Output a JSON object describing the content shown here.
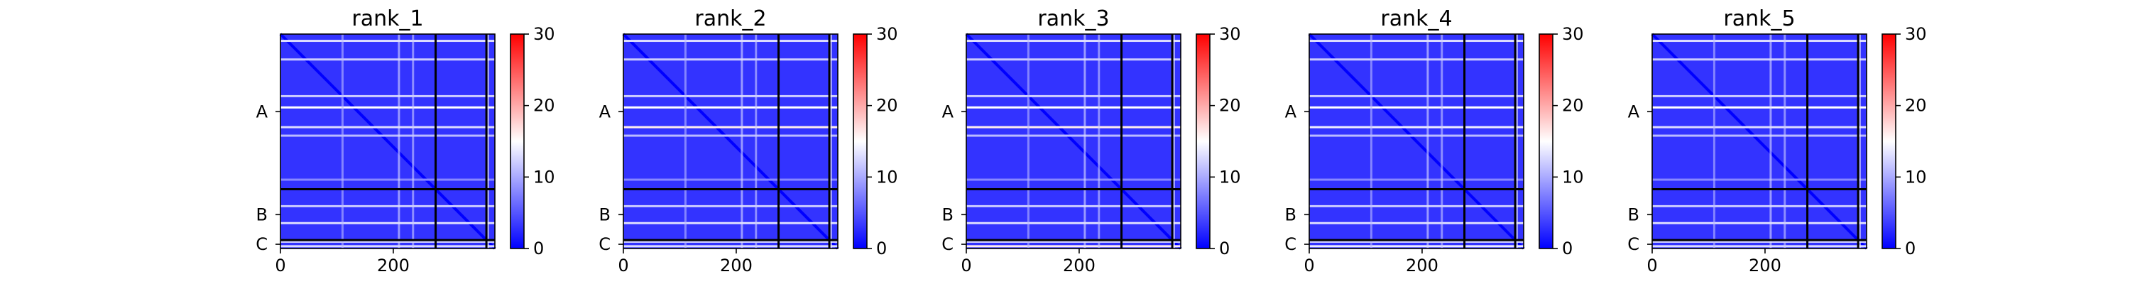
{
  "chart_data": [
    {
      "type": "heatmap",
      "title": "rank_1",
      "xlabel": "",
      "ylabel": "",
      "matrix_size": 380,
      "xlim": [
        0,
        380
      ],
      "x_ticks": [
        0,
        200
      ],
      "y_tick_labels": [
        "A",
        "B",
        "C"
      ],
      "chain_boundaries": [
        275,
        365
      ],
      "colorbar": {
        "ticks": [
          0,
          10,
          20,
          30
        ],
        "vmin": 0,
        "vmax": 30,
        "cmap": "bwr"
      },
      "highlight_rows": [
        {
          "row": 12,
          "value": 13
        },
        {
          "row": 45,
          "value": 12
        },
        {
          "row": 110,
          "value": 12
        },
        {
          "row": 130,
          "value": 15
        },
        {
          "row": 165,
          "value": 13
        },
        {
          "row": 180,
          "value": 11
        },
        {
          "row": 258,
          "value": 8
        },
        {
          "row": 305,
          "value": 12
        },
        {
          "row": 335,
          "value": 13
        },
        {
          "row": 368,
          "value": 12
        },
        {
          "row": 376,
          "value": 13
        }
      ],
      "highlight_cols": [
        {
          "col": 110,
          "value": 11
        },
        {
          "col": 210,
          "value": 13
        },
        {
          "col": 235,
          "value": 12
        },
        {
          "col": 368,
          "value": 14
        }
      ]
    },
    {
      "type": "heatmap",
      "title": "rank_2",
      "xlabel": "",
      "ylabel": "",
      "matrix_size": 380,
      "xlim": [
        0,
        380
      ],
      "x_ticks": [
        0,
        200
      ],
      "y_tick_labels": [
        "A",
        "B",
        "C"
      ],
      "chain_boundaries": [
        275,
        365
      ],
      "colorbar": {
        "ticks": [
          0,
          10,
          20,
          30
        ],
        "vmin": 0,
        "vmax": 30,
        "cmap": "bwr"
      },
      "highlight_rows": [
        {
          "row": 12,
          "value": 13
        },
        {
          "row": 45,
          "value": 12
        },
        {
          "row": 110,
          "value": 12
        },
        {
          "row": 130,
          "value": 15
        },
        {
          "row": 165,
          "value": 16
        },
        {
          "row": 180,
          "value": 11
        },
        {
          "row": 258,
          "value": 8
        },
        {
          "row": 305,
          "value": 12
        },
        {
          "row": 335,
          "value": 13
        },
        {
          "row": 368,
          "value": 12
        },
        {
          "row": 376,
          "value": 13
        }
      ],
      "highlight_cols": [
        {
          "col": 110,
          "value": 11
        },
        {
          "col": 210,
          "value": 13
        },
        {
          "col": 235,
          "value": 12
        },
        {
          "col": 368,
          "value": 14
        }
      ]
    },
    {
      "type": "heatmap",
      "title": "rank_3",
      "xlabel": "",
      "ylabel": "",
      "matrix_size": 380,
      "xlim": [
        0,
        380
      ],
      "x_ticks": [
        0,
        200
      ],
      "y_tick_labels": [
        "A",
        "B",
        "C"
      ],
      "chain_boundaries": [
        275,
        365
      ],
      "colorbar": {
        "ticks": [
          0,
          10,
          20,
          30
        ],
        "vmin": 0,
        "vmax": 30,
        "cmap": "bwr"
      },
      "highlight_rows": [
        {
          "row": 12,
          "value": 13
        },
        {
          "row": 45,
          "value": 12
        },
        {
          "row": 110,
          "value": 12
        },
        {
          "row": 130,
          "value": 15
        },
        {
          "row": 165,
          "value": 16
        },
        {
          "row": 180,
          "value": 11
        },
        {
          "row": 258,
          "value": 8
        },
        {
          "row": 305,
          "value": 12
        },
        {
          "row": 335,
          "value": 13
        },
        {
          "row": 368,
          "value": 12
        },
        {
          "row": 376,
          "value": 16
        }
      ],
      "highlight_cols": [
        {
          "col": 110,
          "value": 11
        },
        {
          "col": 210,
          "value": 13
        },
        {
          "col": 235,
          "value": 12
        },
        {
          "col": 368,
          "value": 14
        }
      ]
    },
    {
      "type": "heatmap",
      "title": "rank_4",
      "xlabel": "",
      "ylabel": "",
      "matrix_size": 380,
      "xlim": [
        0,
        380
      ],
      "x_ticks": [
        0,
        200
      ],
      "y_tick_labels": [
        "A",
        "B",
        "C"
      ],
      "chain_boundaries": [
        275,
        365
      ],
      "colorbar": {
        "ticks": [
          0,
          10,
          20,
          30
        ],
        "vmin": 0,
        "vmax": 30,
        "cmap": "bwr"
      },
      "highlight_rows": [
        {
          "row": 12,
          "value": 13
        },
        {
          "row": 45,
          "value": 12
        },
        {
          "row": 110,
          "value": 12
        },
        {
          "row": 130,
          "value": 15
        },
        {
          "row": 165,
          "value": 14
        },
        {
          "row": 180,
          "value": 11
        },
        {
          "row": 258,
          "value": 8
        },
        {
          "row": 305,
          "value": 12
        },
        {
          "row": 335,
          "value": 13
        },
        {
          "row": 368,
          "value": 12
        },
        {
          "row": 376,
          "value": 14
        }
      ],
      "highlight_cols": [
        {
          "col": 110,
          "value": 11
        },
        {
          "col": 210,
          "value": 13
        },
        {
          "col": 235,
          "value": 12
        },
        {
          "col": 368,
          "value": 14
        }
      ]
    },
    {
      "type": "heatmap",
      "title": "rank_5",
      "xlabel": "",
      "ylabel": "",
      "matrix_size": 380,
      "xlim": [
        0,
        380
      ],
      "x_ticks": [
        0,
        200
      ],
      "y_tick_labels": [
        "A",
        "B",
        "C"
      ],
      "chain_boundaries": [
        275,
        365
      ],
      "colorbar": {
        "ticks": [
          0,
          10,
          20,
          30
        ],
        "vmin": 0,
        "vmax": 30,
        "cmap": "bwr"
      },
      "highlight_rows": [
        {
          "row": 12,
          "value": 13
        },
        {
          "row": 45,
          "value": 12
        },
        {
          "row": 110,
          "value": 12
        },
        {
          "row": 130,
          "value": 15
        },
        {
          "row": 165,
          "value": 13
        },
        {
          "row": 180,
          "value": 11
        },
        {
          "row": 258,
          "value": 8
        },
        {
          "row": 305,
          "value": 12
        },
        {
          "row": 335,
          "value": 13
        },
        {
          "row": 368,
          "value": 12
        },
        {
          "row": 376,
          "value": 13
        }
      ],
      "highlight_cols": [
        {
          "col": 110,
          "value": 11
        },
        {
          "col": 210,
          "value": 13
        },
        {
          "col": 235,
          "value": 12
        },
        {
          "col": 368,
          "value": 14
        }
      ]
    }
  ]
}
